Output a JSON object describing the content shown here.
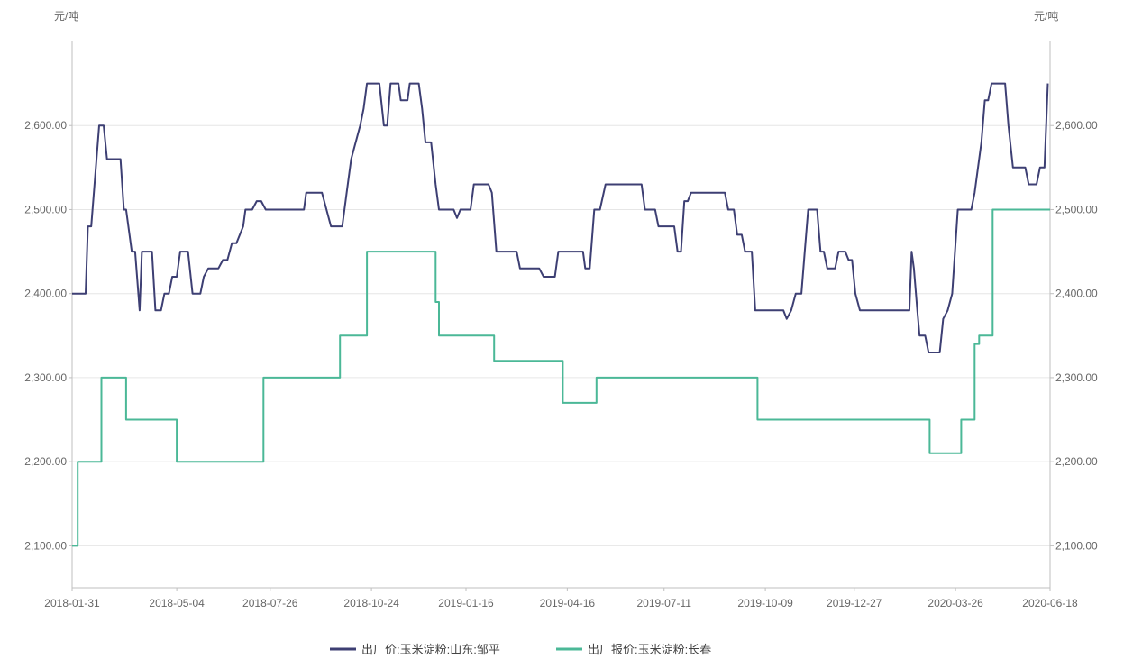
{
  "chart_data": {
    "type": "line",
    "y_unit_left": "元/吨",
    "y_unit_right": "元/吨",
    "ylim": [
      2050,
      2700
    ],
    "y_ticks": [
      2100,
      2200,
      2300,
      2400,
      2500,
      2600
    ],
    "y_tick_labels": [
      "2,100.00",
      "2,200.00",
      "2,300.00",
      "2,400.00",
      "2,500.00",
      "2,600.00"
    ],
    "x_range": [
      "2018-01-31",
      "2020-06-18"
    ],
    "x_ticks": [
      "2018-01-31",
      "2018-05-04",
      "2018-07-26",
      "2018-10-24",
      "2019-01-16",
      "2019-04-16",
      "2019-07-11",
      "2019-10-09",
      "2019-12-27",
      "2020-03-26",
      "2020-06-18"
    ],
    "grid": "horizontal",
    "legend_position": "bottom",
    "series": [
      {
        "name": "出厂价:玉米淀粉:山东:邹平",
        "color": "#3d3f73",
        "step": false,
        "points": [
          [
            "2018-01-31",
            2400
          ],
          [
            "2018-02-12",
            2400
          ],
          [
            "2018-02-14",
            2480
          ],
          [
            "2018-02-17",
            2480
          ],
          [
            "2018-02-24",
            2600
          ],
          [
            "2018-02-28",
            2600
          ],
          [
            "2018-03-03",
            2560
          ],
          [
            "2018-03-15",
            2560
          ],
          [
            "2018-03-18",
            2500
          ],
          [
            "2018-03-20",
            2500
          ],
          [
            "2018-03-25",
            2450
          ],
          [
            "2018-03-28",
            2450
          ],
          [
            "2018-04-01",
            2380
          ],
          [
            "2018-04-03",
            2450
          ],
          [
            "2018-04-12",
            2450
          ],
          [
            "2018-04-15",
            2380
          ],
          [
            "2018-04-20",
            2380
          ],
          [
            "2018-04-23",
            2400
          ],
          [
            "2018-04-27",
            2400
          ],
          [
            "2018-04-30",
            2420
          ],
          [
            "2018-05-04",
            2420
          ],
          [
            "2018-05-07",
            2450
          ],
          [
            "2018-05-14",
            2450
          ],
          [
            "2018-05-18",
            2400
          ],
          [
            "2018-05-25",
            2400
          ],
          [
            "2018-05-28",
            2420
          ],
          [
            "2018-06-01",
            2430
          ],
          [
            "2018-06-10",
            2430
          ],
          [
            "2018-06-14",
            2440
          ],
          [
            "2018-06-18",
            2440
          ],
          [
            "2018-06-22",
            2460
          ],
          [
            "2018-06-26",
            2460
          ],
          [
            "2018-07-02",
            2480
          ],
          [
            "2018-07-04",
            2500
          ],
          [
            "2018-07-10",
            2500
          ],
          [
            "2018-07-14",
            2510
          ],
          [
            "2018-07-18",
            2510
          ],
          [
            "2018-07-22",
            2500
          ],
          [
            "2018-08-25",
            2500
          ],
          [
            "2018-08-27",
            2520
          ],
          [
            "2018-09-10",
            2520
          ],
          [
            "2018-09-14",
            2500
          ],
          [
            "2018-09-18",
            2480
          ],
          [
            "2018-09-28",
            2480
          ],
          [
            "2018-10-02",
            2520
          ],
          [
            "2018-10-06",
            2560
          ],
          [
            "2018-10-10",
            2580
          ],
          [
            "2018-10-14",
            2600
          ],
          [
            "2018-10-17",
            2620
          ],
          [
            "2018-10-20",
            2650
          ],
          [
            "2018-10-31",
            2650
          ],
          [
            "2018-11-04",
            2600
          ],
          [
            "2018-11-07",
            2600
          ],
          [
            "2018-11-10",
            2650
          ],
          [
            "2018-11-17",
            2650
          ],
          [
            "2018-11-19",
            2630
          ],
          [
            "2018-11-25",
            2630
          ],
          [
            "2018-11-27",
            2650
          ],
          [
            "2018-12-05",
            2650
          ],
          [
            "2018-12-08",
            2620
          ],
          [
            "2018-12-11",
            2580
          ],
          [
            "2018-12-16",
            2580
          ],
          [
            "2018-12-20",
            2530
          ],
          [
            "2018-12-23",
            2500
          ],
          [
            "2019-01-05",
            2500
          ],
          [
            "2019-01-08",
            2490
          ],
          [
            "2019-01-11",
            2500
          ],
          [
            "2019-01-20",
            2500
          ],
          [
            "2019-01-23",
            2530
          ],
          [
            "2019-02-05",
            2530
          ],
          [
            "2019-02-08",
            2520
          ],
          [
            "2019-02-12",
            2450
          ],
          [
            "2019-03-02",
            2450
          ],
          [
            "2019-03-05",
            2430
          ],
          [
            "2019-03-22",
            2430
          ],
          [
            "2019-03-26",
            2420
          ],
          [
            "2019-04-05",
            2420
          ],
          [
            "2019-04-08",
            2450
          ],
          [
            "2019-04-30",
            2450
          ],
          [
            "2019-05-02",
            2430
          ],
          [
            "2019-05-06",
            2430
          ],
          [
            "2019-05-10",
            2500
          ],
          [
            "2019-05-15",
            2500
          ],
          [
            "2019-05-20",
            2530
          ],
          [
            "2019-06-21",
            2530
          ],
          [
            "2019-06-24",
            2500
          ],
          [
            "2019-07-03",
            2500
          ],
          [
            "2019-07-06",
            2480
          ],
          [
            "2019-07-20",
            2480
          ],
          [
            "2019-07-23",
            2450
          ],
          [
            "2019-07-26",
            2450
          ],
          [
            "2019-07-29",
            2510
          ],
          [
            "2019-08-01",
            2510
          ],
          [
            "2019-08-04",
            2520
          ],
          [
            "2019-09-03",
            2520
          ],
          [
            "2019-09-06",
            2500
          ],
          [
            "2019-09-11",
            2500
          ],
          [
            "2019-09-14",
            2470
          ],
          [
            "2019-09-18",
            2470
          ],
          [
            "2019-09-21",
            2450
          ],
          [
            "2019-09-27",
            2450
          ],
          [
            "2019-09-30",
            2380
          ],
          [
            "2019-10-25",
            2380
          ],
          [
            "2019-10-28",
            2370
          ],
          [
            "2019-11-01",
            2380
          ],
          [
            "2019-11-05",
            2400
          ],
          [
            "2019-11-10",
            2400
          ],
          [
            "2019-11-13",
            2450
          ],
          [
            "2019-11-16",
            2500
          ],
          [
            "2019-11-24",
            2500
          ],
          [
            "2019-11-27",
            2450
          ],
          [
            "2019-11-30",
            2450
          ],
          [
            "2019-12-03",
            2430
          ],
          [
            "2019-12-10",
            2430
          ],
          [
            "2019-12-13",
            2450
          ],
          [
            "2019-12-19",
            2450
          ],
          [
            "2019-12-22",
            2440
          ],
          [
            "2019-12-25",
            2440
          ],
          [
            "2019-12-28",
            2400
          ],
          [
            "2020-01-01",
            2380
          ],
          [
            "2020-02-14",
            2380
          ],
          [
            "2020-02-16",
            2450
          ],
          [
            "2020-02-18",
            2430
          ],
          [
            "2020-02-21",
            2380
          ],
          [
            "2020-02-23",
            2350
          ],
          [
            "2020-02-28",
            2350
          ],
          [
            "2020-03-02",
            2330
          ],
          [
            "2020-03-12",
            2330
          ],
          [
            "2020-03-15",
            2370
          ],
          [
            "2020-03-19",
            2380
          ],
          [
            "2020-03-23",
            2400
          ],
          [
            "2020-03-28",
            2500
          ],
          [
            "2020-04-09",
            2500
          ],
          [
            "2020-04-12",
            2520
          ],
          [
            "2020-04-18",
            2580
          ],
          [
            "2020-04-21",
            2630
          ],
          [
            "2020-04-24",
            2630
          ],
          [
            "2020-04-27",
            2650
          ],
          [
            "2020-05-09",
            2650
          ],
          [
            "2020-05-12",
            2600
          ],
          [
            "2020-05-16",
            2550
          ],
          [
            "2020-05-27",
            2550
          ],
          [
            "2020-05-30",
            2530
          ],
          [
            "2020-06-06",
            2530
          ],
          [
            "2020-06-09",
            2550
          ],
          [
            "2020-06-13",
            2550
          ],
          [
            "2020-06-16",
            2650
          ]
        ]
      },
      {
        "name": "出厂报价:玉米淀粉:长春",
        "color": "#4bb897",
        "step": true,
        "points": [
          [
            "2018-01-31",
            2100
          ],
          [
            "2018-02-05",
            2200
          ],
          [
            "2018-02-26",
            2300
          ],
          [
            "2018-03-20",
            2250
          ],
          [
            "2018-05-04",
            2200
          ],
          [
            "2018-07-20",
            2300
          ],
          [
            "2018-09-26",
            2350
          ],
          [
            "2018-10-20",
            2450
          ],
          [
            "2018-12-20",
            2390
          ],
          [
            "2018-12-23",
            2350
          ],
          [
            "2019-02-10",
            2320
          ],
          [
            "2019-04-12",
            2270
          ],
          [
            "2019-05-12",
            2300
          ],
          [
            "2019-10-02",
            2250
          ],
          [
            "2020-03-03",
            2210
          ],
          [
            "2020-03-31",
            2250
          ],
          [
            "2020-04-12",
            2340
          ],
          [
            "2020-04-16",
            2350
          ],
          [
            "2020-04-28",
            2500
          ],
          [
            "2020-06-18",
            2500
          ]
        ]
      }
    ]
  }
}
